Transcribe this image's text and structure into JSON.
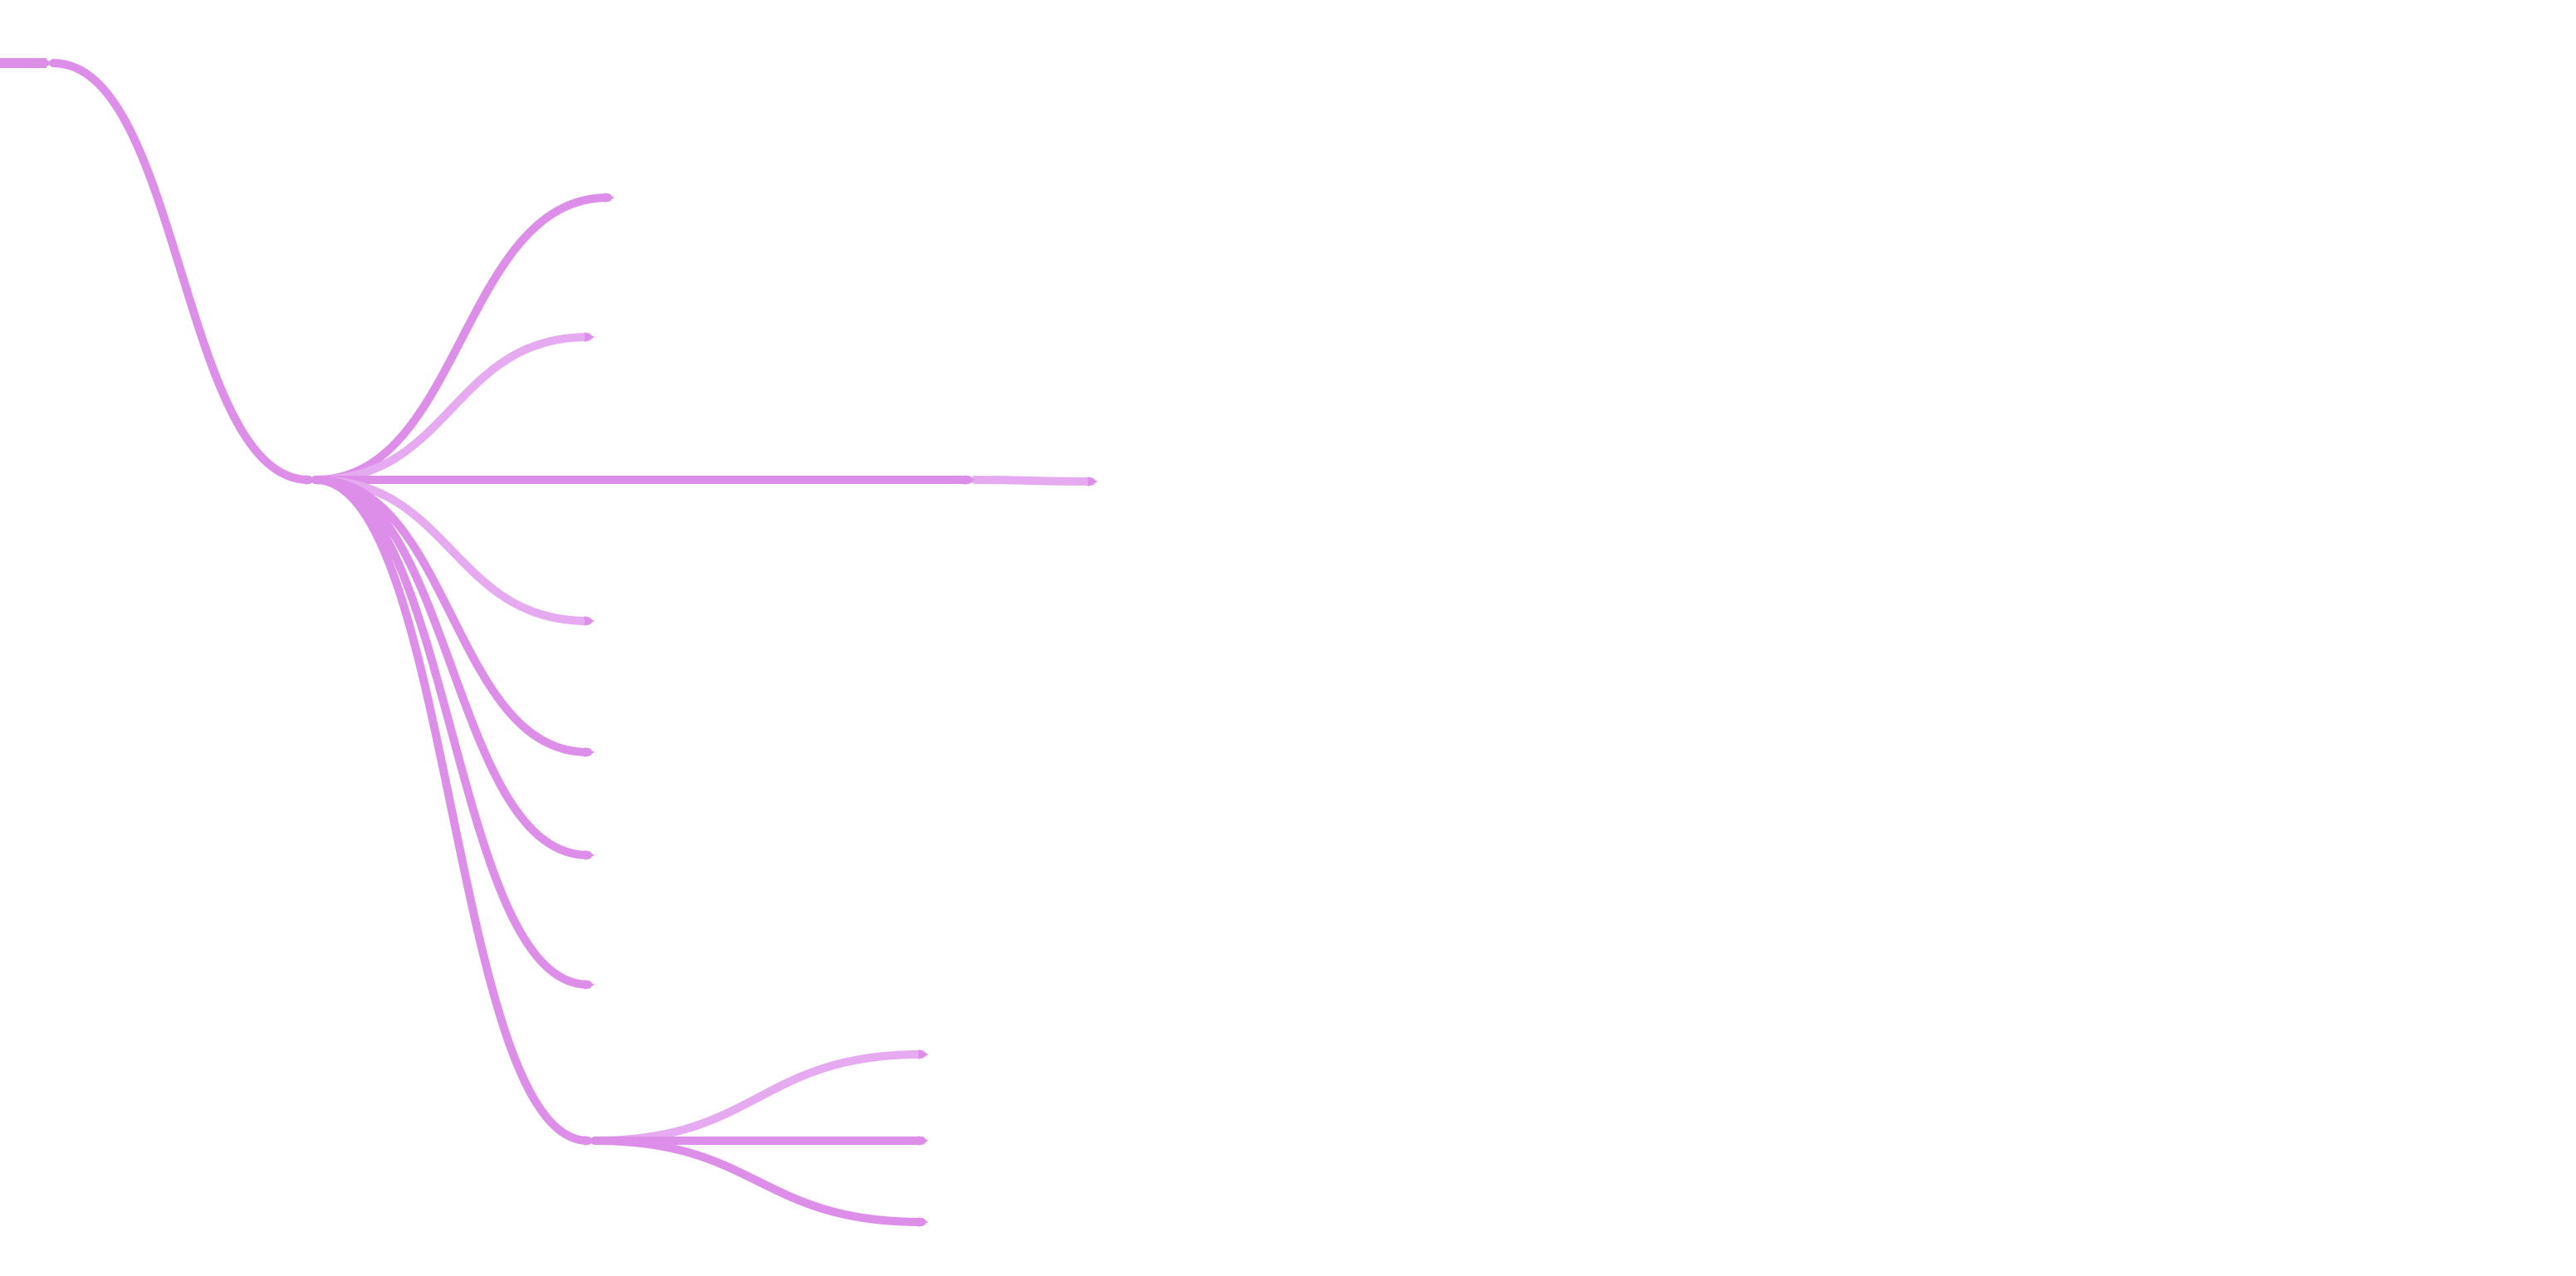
{
  "diagram": {
    "type": "mindmap",
    "colors": {
      "branch": "#dc8ee8",
      "branch_light": "#e6aaf0",
      "background": "#ffffff"
    },
    "root": {
      "label": "",
      "children": [
        {
          "label": "",
          "children": [
            {
              "label": "",
              "children": []
            },
            {
              "label": "",
              "children": []
            },
            {
              "label": "",
              "children": [
                {
                  "label": "",
                  "children": []
                }
              ]
            },
            {
              "label": "",
              "children": []
            },
            {
              "label": "",
              "children": []
            },
            {
              "label": "",
              "children": []
            },
            {
              "label": "",
              "children": []
            },
            {
              "label": "",
              "children": [
                {
                  "label": "",
                  "children": []
                },
                {
                  "label": "",
                  "children": []
                },
                {
                  "label": "",
                  "children": []
                }
              ]
            }
          ]
        }
      ]
    }
  }
}
